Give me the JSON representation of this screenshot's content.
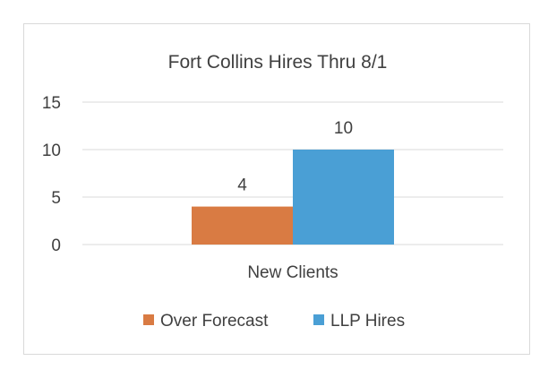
{
  "chart_data": {
    "type": "bar",
    "title": "Fort Collins Hires Thru 8/1",
    "categories": [
      "New Clients"
    ],
    "series": [
      {
        "name": "Over Forecast",
        "values": [
          4
        ],
        "color": "#D97B43"
      },
      {
        "name": "LLP Hires",
        "values": [
          10
        ],
        "color": "#4A9FD5"
      }
    ],
    "ylim": [
      0,
      15
    ],
    "yticks": [
      "0",
      "5",
      "10",
      "15"
    ],
    "grid": true,
    "legend": "bottom",
    "data_labels": true
  }
}
